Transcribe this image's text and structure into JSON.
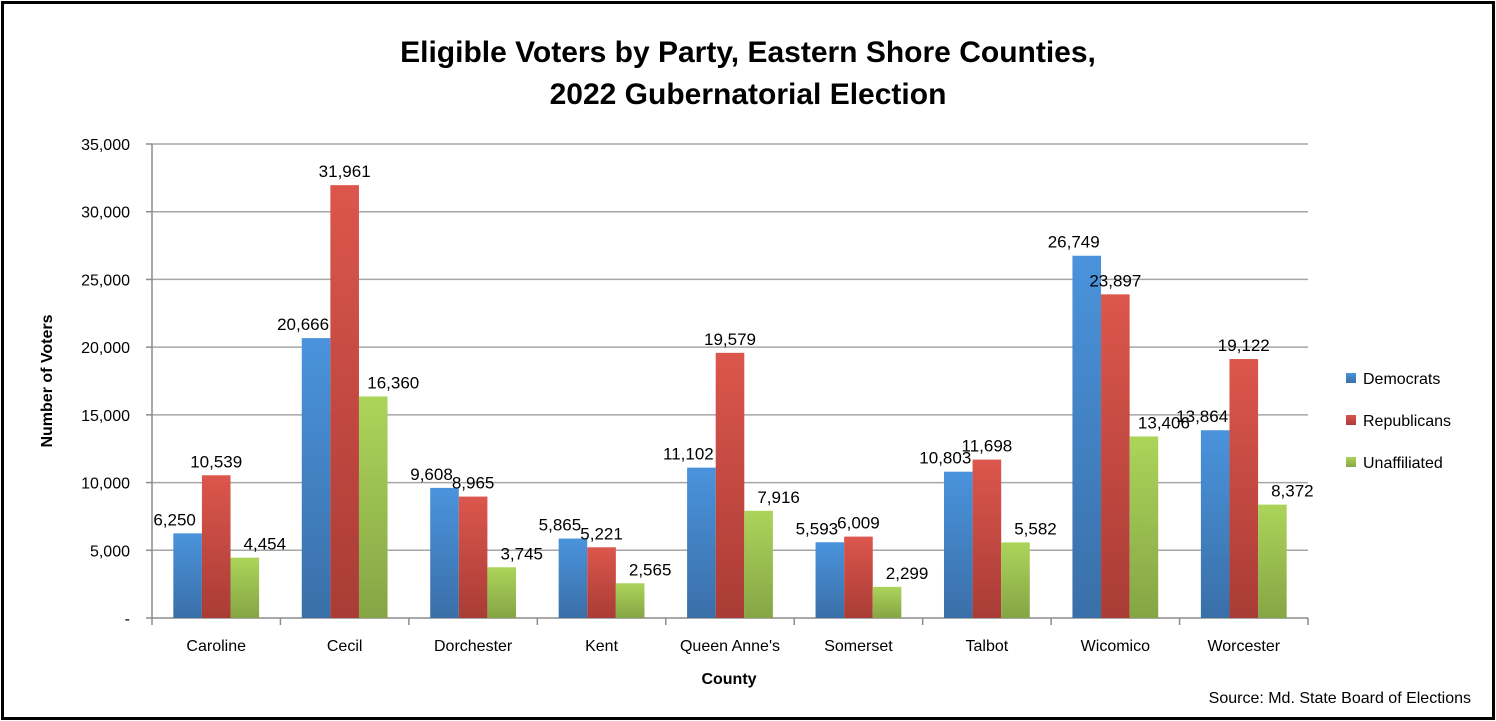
{
  "chart_data": {
    "type": "bar",
    "title": [
      "Eligible Voters by Party, Eastern Shore Counties,",
      "2022 Gubernatorial Election"
    ],
    "xlabel": "County",
    "ylabel": "Number of Voters",
    "ylim": [
      0,
      35000
    ],
    "yticks": [
      0,
      5000,
      10000,
      15000,
      20000,
      25000,
      30000,
      35000
    ],
    "ytick_labels": [
      "-",
      "5,000",
      "10,000",
      "15,000",
      "20,000",
      "25,000",
      "30,000",
      "35,000"
    ],
    "grid": true,
    "legend_position": "right",
    "categories": [
      "Caroline",
      "Cecil",
      "Dorchester",
      "Kent",
      "Queen Anne's",
      "Somerset",
      "Talbot",
      "Wicomico",
      "Worcester"
    ],
    "series": [
      {
        "name": "Democrats",
        "color": "#4a8ed4",
        "values": [
          6250,
          20666,
          9608,
          5865,
          11102,
          5593,
          10803,
          26749,
          13864
        ],
        "labels": [
          "6,250",
          "20,666",
          "9,608",
          "5,865",
          "11,102",
          "5,593",
          "10,803",
          "26,749",
          "13,864"
        ]
      },
      {
        "name": "Republicans",
        "color": "#d6524a",
        "values": [
          10539,
          31961,
          8965,
          5221,
          19579,
          6009,
          11698,
          23897,
          19122
        ],
        "labels": [
          "10,539",
          "31,961",
          "8,965",
          "5,221",
          "19,579",
          "6,009",
          "11,698",
          "23,897",
          "19,122"
        ]
      },
      {
        "name": "Unaffiliated",
        "color": "#a6c954",
        "values": [
          4454,
          16360,
          3745,
          2565,
          7916,
          2299,
          5582,
          13406,
          8372
        ],
        "labels": [
          "4,454",
          "16,360",
          "3,745",
          "2,565",
          "7,916",
          "2,299",
          "5,582",
          "13,406",
          "8,372"
        ]
      }
    ],
    "source": "Source:  Md. State Board of Elections"
  }
}
